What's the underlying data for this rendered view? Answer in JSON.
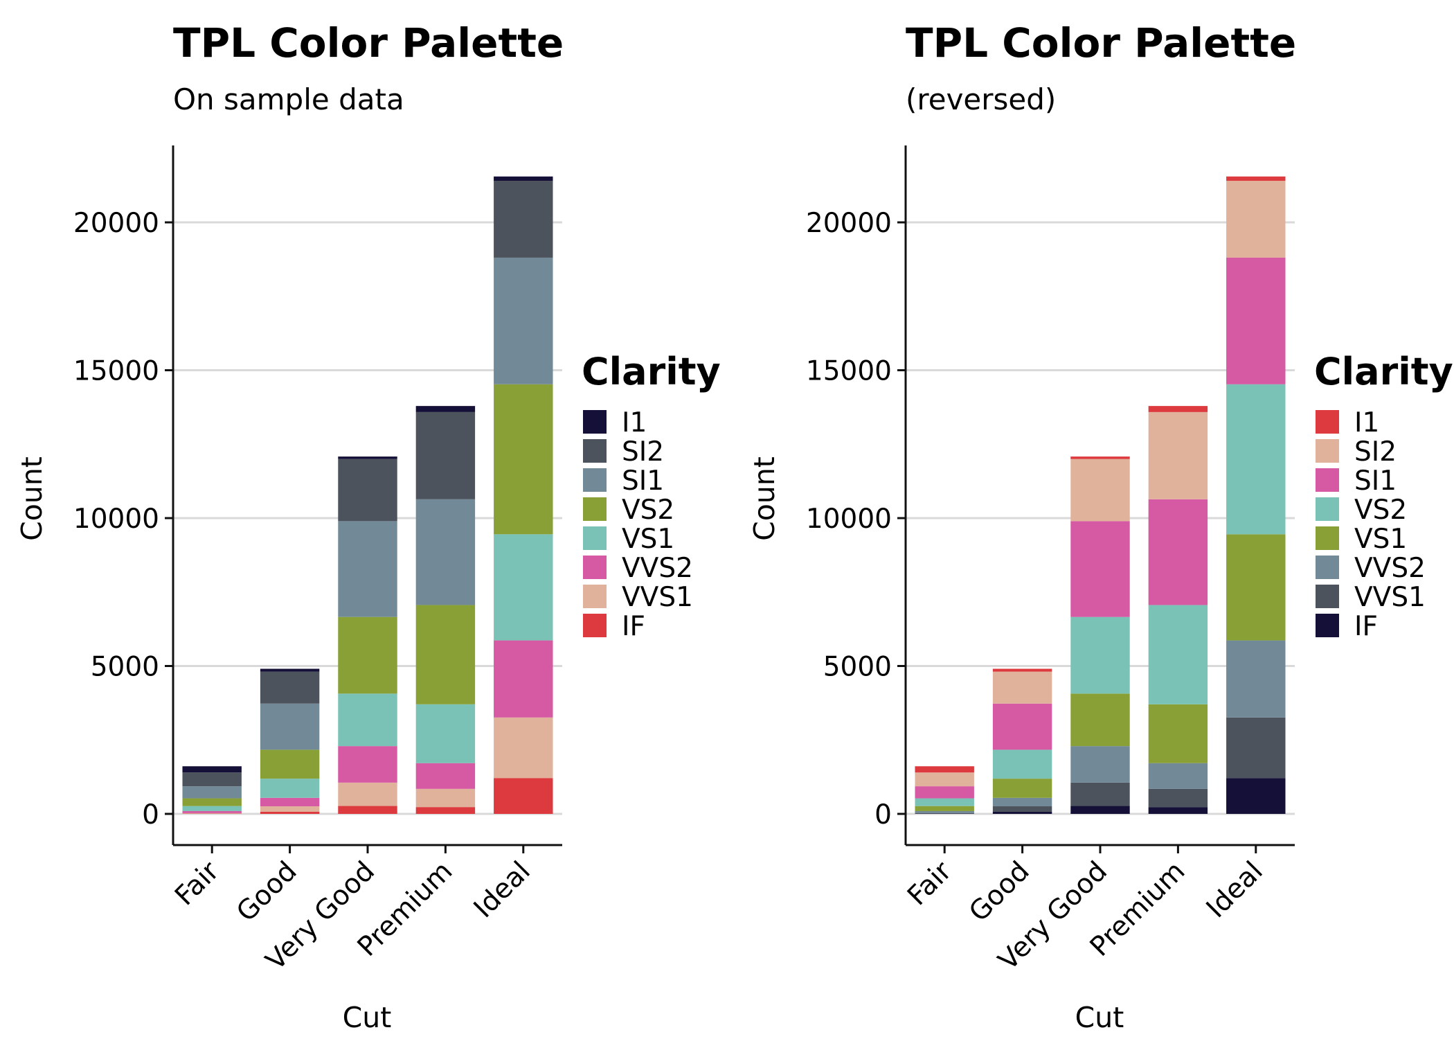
{
  "charts": [
    {
      "title": "TPL Color Palette",
      "subtitle": "On sample data",
      "chart_data": {
        "type": "bar",
        "stacked": true,
        "title": "TPL Color Palette",
        "subtitle": "On sample data",
        "xlabel": "Cut",
        "ylabel": "Count",
        "categories": [
          "Fair",
          "Good",
          "Very Good",
          "Premium",
          "Ideal"
        ],
        "ylim": [
          0,
          22600
        ],
        "yticks": [
          0,
          5000,
          10000,
          15000,
          20000
        ],
        "grid": "horizontal",
        "legend_title": "Clarity",
        "legend_position": "right",
        "series": [
          {
            "name": "I1",
            "color": "#141038",
            "values": [
              210,
              96,
              84,
              205,
              146
            ]
          },
          {
            "name": "SI2",
            "color": "#4d535d",
            "values": [
              466,
              1081,
              2100,
              2949,
              2598
            ]
          },
          {
            "name": "SI1",
            "color": "#728a98",
            "values": [
              408,
              1560,
              3240,
              3575,
              4282
            ]
          },
          {
            "name": "VS2",
            "color": "#89a036",
            "values": [
              261,
              978,
              2591,
              3357,
              5071
            ]
          },
          {
            "name": "VS1",
            "color": "#7bc2b6",
            "values": [
              170,
              648,
              1775,
              1989,
              3589
            ]
          },
          {
            "name": "VVS2",
            "color": "#d55aa3",
            "values": [
              69,
              286,
              1235,
              870,
              2606
            ]
          },
          {
            "name": "VVS1",
            "color": "#e1b29b",
            "values": [
              17,
              186,
              789,
              616,
              2047
            ]
          },
          {
            "name": "IF",
            "color": "#dc3a3e",
            "values": [
              9,
              71,
              268,
              230,
              1212
            ]
          }
        ]
      }
    },
    {
      "title": "TPL Color Palette",
      "subtitle": "(reversed)",
      "chart_data": {
        "type": "bar",
        "stacked": true,
        "title": "TPL Color Palette",
        "subtitle": "(reversed)",
        "xlabel": "Cut",
        "ylabel": "Count",
        "categories": [
          "Fair",
          "Good",
          "Very Good",
          "Premium",
          "Ideal"
        ],
        "ylim": [
          0,
          22600
        ],
        "yticks": [
          0,
          5000,
          10000,
          15000,
          20000
        ],
        "grid": "horizontal",
        "legend_title": "Clarity",
        "legend_position": "right",
        "series": [
          {
            "name": "I1",
            "color": "#dc3a3e",
            "values": [
              210,
              96,
              84,
              205,
              146
            ]
          },
          {
            "name": "SI2",
            "color": "#e1b29b",
            "values": [
              466,
              1081,
              2100,
              2949,
              2598
            ]
          },
          {
            "name": "SI1",
            "color": "#d55aa3",
            "values": [
              408,
              1560,
              3240,
              3575,
              4282
            ]
          },
          {
            "name": "VS2",
            "color": "#7bc2b6",
            "values": [
              261,
              978,
              2591,
              3357,
              5071
            ]
          },
          {
            "name": "VS1",
            "color": "#89a036",
            "values": [
              170,
              648,
              1775,
              1989,
              3589
            ]
          },
          {
            "name": "VVS2",
            "color": "#728a98",
            "values": [
              69,
              286,
              1235,
              870,
              2606
            ]
          },
          {
            "name": "VVS1",
            "color": "#4d535d",
            "values": [
              17,
              186,
              789,
              616,
              2047
            ]
          },
          {
            "name": "IF",
            "color": "#141038",
            "values": [
              9,
              71,
              268,
              230,
              1212
            ]
          }
        ]
      }
    }
  ]
}
